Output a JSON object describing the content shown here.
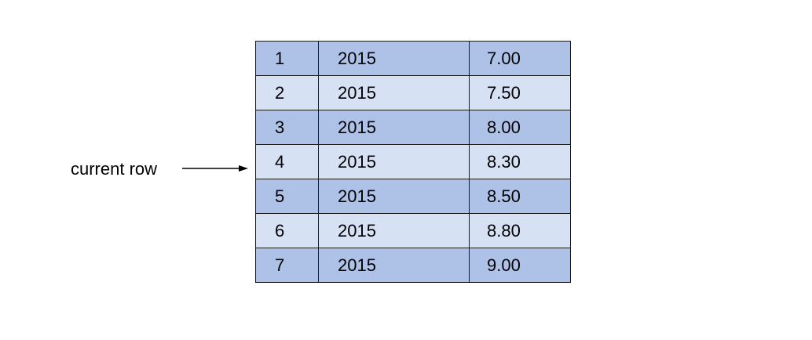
{
  "pointer": {
    "label": "current row",
    "target_row": "4"
  },
  "table": {
    "rows": [
      {
        "id": "1",
        "year": "2015",
        "value": "7.00",
        "shade": "dark"
      },
      {
        "id": "2",
        "year": "2015",
        "value": "7.50",
        "shade": "light"
      },
      {
        "id": "3",
        "year": "2015",
        "value": "8.00",
        "shade": "dark"
      },
      {
        "id": "4",
        "year": "2015",
        "value": "8.30",
        "shade": "light"
      },
      {
        "id": "5",
        "year": "2015",
        "value": "8.50",
        "shade": "dark"
      },
      {
        "id": "6",
        "year": "2015",
        "value": "8.80",
        "shade": "light"
      },
      {
        "id": "7",
        "year": "2015",
        "value": "9.00",
        "shade": "dark"
      }
    ]
  },
  "colors": {
    "dark_row": "#aec2e8",
    "light_row": "#d6e1f4",
    "border": "#1a1a1a"
  }
}
